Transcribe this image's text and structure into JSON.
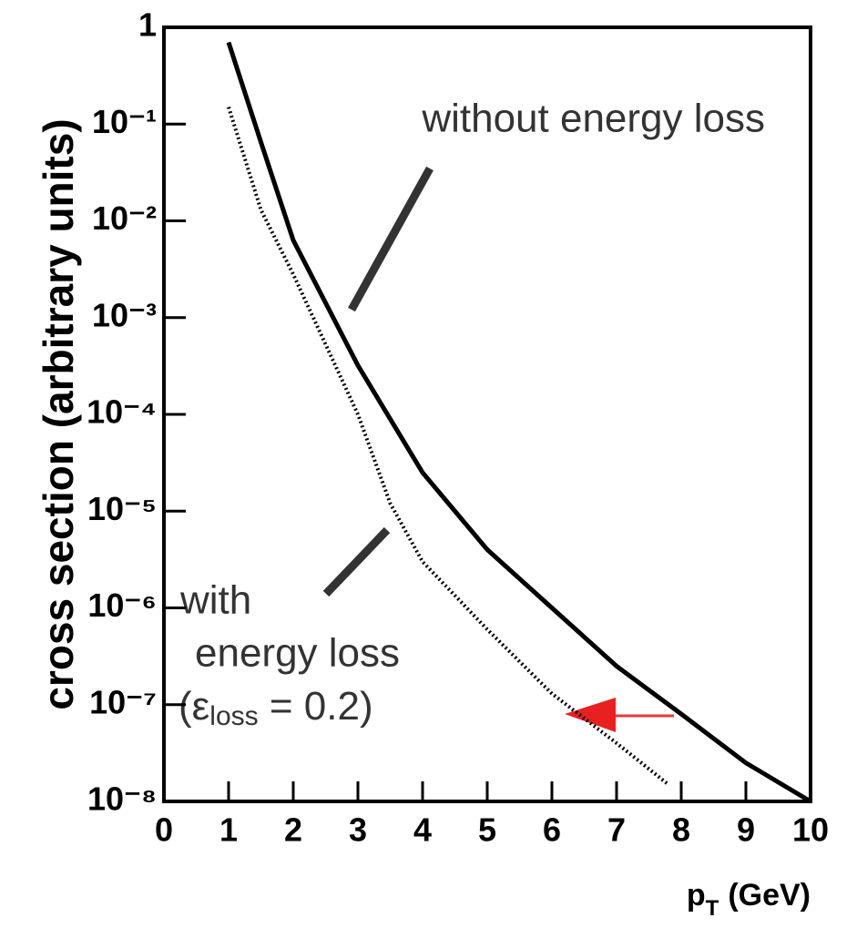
{
  "chart_data": {
    "type": "line",
    "y_label": "cross section (arbitrary units)",
    "x_label": {
      "main": "p",
      "sub": "T",
      "rest": "(GeV)"
    },
    "log_y": true,
    "xlim": [
      0,
      10
    ],
    "xticks": [
      0,
      1,
      2,
      3,
      4,
      5,
      6,
      7,
      8,
      9,
      10
    ],
    "ylim": [
      1e-08,
      1
    ],
    "yticks": [
      {
        "value": 1e-08,
        "label": "10⁻⁸"
      },
      {
        "value": 1e-07,
        "label": "10⁻⁷"
      },
      {
        "value": 1e-06,
        "label": "10⁻⁶"
      },
      {
        "value": 1e-05,
        "label": "10⁻⁵"
      },
      {
        "value": 0.0001,
        "label": "10⁻⁴"
      },
      {
        "value": 0.001,
        "label": "10⁻³"
      },
      {
        "value": 0.01,
        "label": "10⁻²"
      },
      {
        "value": 0.1,
        "label": "10⁻¹"
      },
      1
    ],
    "series": [
      {
        "name": "without energy loss",
        "color": "#000000",
        "dash": "solid",
        "x": [
          1,
          1.5,
          2,
          3,
          4,
          5,
          6,
          7,
          8,
          9,
          10
        ],
        "values": [
          0.7,
          0.065,
          0.0063,
          0.00032,
          2.5e-05,
          4e-06,
          1e-06,
          2.5e-07,
          8e-08,
          2.5e-08,
          1e-08
        ]
      },
      {
        "name": "with energy loss",
        "color": "#000000",
        "dash": "dotted",
        "x": [
          1,
          1.5,
          2,
          3,
          3.5,
          4,
          5,
          6,
          7,
          7.8
        ],
        "values": [
          0.15,
          0.013,
          0.0028,
          0.0001,
          1.2e-05,
          3e-06,
          6e-07,
          1.3e-07,
          4e-08,
          1.5e-08
        ]
      }
    ],
    "annotations": {
      "top": "without energy loss",
      "bottom_1": "with",
      "bottom_2": "energy loss",
      "bottom_3a": "(ε",
      "bottom_3b": "loss",
      "bottom_3c": " = 0.2)"
    }
  }
}
